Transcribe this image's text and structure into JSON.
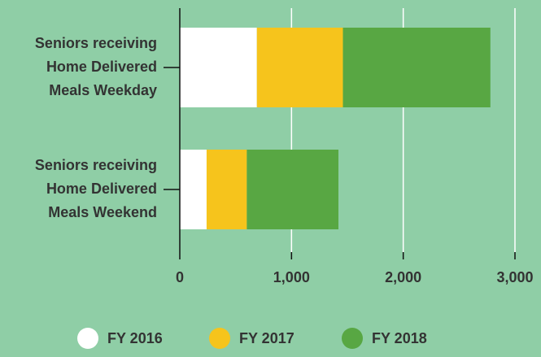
{
  "chart_data": {
    "type": "stacked-bar-horizontal",
    "categories": [
      [
        "Seniors receiving",
        "Home Delivered",
        "Meals Weekday"
      ],
      [
        "Seniors receiving",
        "Home Delivered",
        "Meals Weekend"
      ]
    ],
    "series": [
      {
        "name": "FY 2016",
        "color": "#ffffff",
        "values": [
          690,
          240
        ]
      },
      {
        "name": "FY 2017",
        "color": "#f6c41c",
        "values": [
          770,
          360
        ]
      },
      {
        "name": "FY 2018",
        "color": "#58a743",
        "values": [
          1320,
          820
        ]
      }
    ],
    "xlim": [
      0,
      3000
    ],
    "xticks": [
      0,
      {
        "value": 1000,
        "label": "1,000"
      },
      {
        "value": 2000,
        "label": "2,000"
      },
      {
        "value": 3000,
        "label": "3,000"
      }
    ],
    "grid": true,
    "legend": "bottom"
  }
}
